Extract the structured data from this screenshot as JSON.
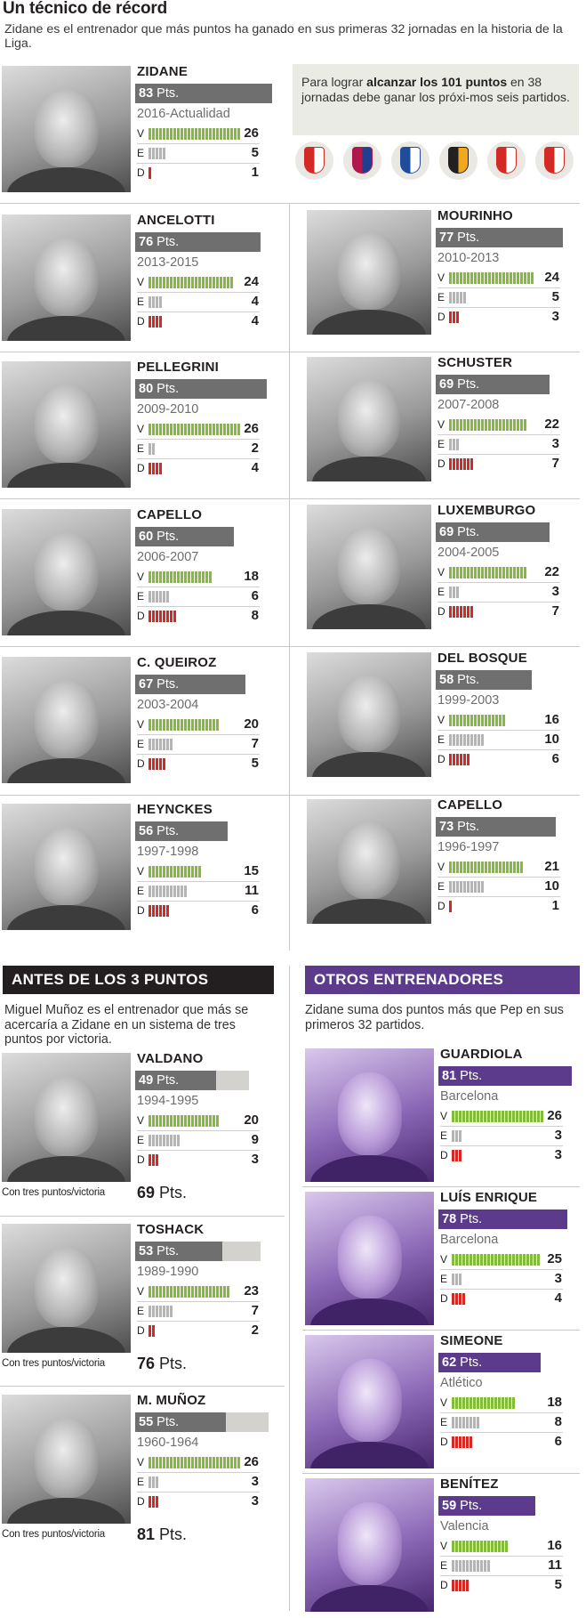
{
  "header": {
    "title": "Un técnico de récord",
    "subtitle": "Zidane es el entrenador que más puntos ha ganado en sus primeras 32 jornadas en la historia de la Liga."
  },
  "note": {
    "text_before": "Para lograr ",
    "text_bold": "alcanzar los 101 puntos",
    "text_after": " en 38 jornadas debe ganar los próxi-mos seis partidos.",
    "remaining_opponents": [
      "sporting-gijon-crest",
      "barcelona-crest",
      "deportivo-crest",
      "valencia-crest",
      "granada-crest",
      "sevilla-crest"
    ]
  },
  "sections": {
    "before_three_points": {
      "title": "ANTES DE LOS 3 PUNTOS",
      "text": "Miguel Muñoz es el entrenador que más se acercaría a Zidane en un sistema de tres puntos por victoria."
    },
    "other_coaches": {
      "title": "OTROS ENTRENADORES",
      "text": "Zidane suma dos puntos más que Pep en sus primeros 32 partidos."
    }
  },
  "labels": {
    "pts_suffix": "Pts.",
    "win": "V",
    "draw": "E",
    "loss": "D",
    "three_points": "Con tres puntos/victoria"
  },
  "colors": {
    "win": "#82bc3a",
    "draw": "#b4b4b4",
    "loss": "#d42a25",
    "points_bar": "#706f6f",
    "points_bar_others": "#5c3a8c",
    "three_points_ghost": "#d3d2ce"
  },
  "chart_data": {
    "type": "bar",
    "points_max": 83,
    "coaches": [
      {
        "name": "ZIDANE",
        "points": 83,
        "period": "2016-Actualidad",
        "won": 26,
        "drawn": 5,
        "lost": 1
      },
      {
        "name": "ANCELOTTI",
        "points": 76,
        "period": "2013-2015",
        "won": 24,
        "drawn": 4,
        "lost": 4
      },
      {
        "name": "MOURINHO",
        "points": 77,
        "period": "2010-2013",
        "won": 24,
        "drawn": 5,
        "lost": 3
      },
      {
        "name": "PELLEGRINI",
        "points": 80,
        "period": "2009-2010",
        "won": 26,
        "drawn": 2,
        "lost": 4
      },
      {
        "name": "SCHUSTER",
        "points": 69,
        "period": "2007-2008",
        "won": 22,
        "drawn": 3,
        "lost": 7
      },
      {
        "name": "CAPELLO",
        "points": 60,
        "period": "2006-2007",
        "won": 18,
        "drawn": 6,
        "lost": 8
      },
      {
        "name": "LUXEMBURGO",
        "points": 69,
        "period": "2004-2005",
        "won": 22,
        "drawn": 3,
        "lost": 7
      },
      {
        "name": "C. QUEIROZ",
        "points": 67,
        "period": "2003-2004",
        "won": 20,
        "drawn": 7,
        "lost": 5
      },
      {
        "name": "DEL BOSQUE",
        "points": 58,
        "period": "1999-2003",
        "won": 16,
        "drawn": 10,
        "lost": 6
      },
      {
        "name": "HEYNCKES",
        "points": 56,
        "period": "1997-1998",
        "won": 15,
        "drawn": 11,
        "lost": 6
      },
      {
        "name": "CAPELLO",
        "points": 73,
        "period": "1996-1997",
        "won": 21,
        "drawn": 10,
        "lost": 1
      },
      {
        "name": "VALDANO",
        "points": 49,
        "period": "1994-1995",
        "won": 20,
        "drawn": 9,
        "lost": 3,
        "three_points": 69
      },
      {
        "name": "TOSHACK",
        "points": 53,
        "period": "1989-1990",
        "won": 23,
        "drawn": 7,
        "lost": 2,
        "three_points": 76
      },
      {
        "name": "M. MUÑOZ",
        "points": 55,
        "period": "1960-1964",
        "won": 26,
        "drawn": 3,
        "lost": 3,
        "three_points": 81
      },
      {
        "name": "GUARDIOLA",
        "points": 81,
        "period": "Barcelona",
        "won": 26,
        "drawn": 3,
        "lost": 3
      },
      {
        "name": "LUÍS ENRIQUE",
        "points": 78,
        "period": "Barcelona",
        "won": 25,
        "drawn": 3,
        "lost": 4
      },
      {
        "name": "SIMEONE",
        "points": 62,
        "period": "Atlético",
        "won": 18,
        "drawn": 8,
        "lost": 6
      },
      {
        "name": "BENÍTEZ",
        "points": 59,
        "period": "Valencia",
        "won": 16,
        "drawn": 11,
        "lost": 5
      }
    ]
  }
}
